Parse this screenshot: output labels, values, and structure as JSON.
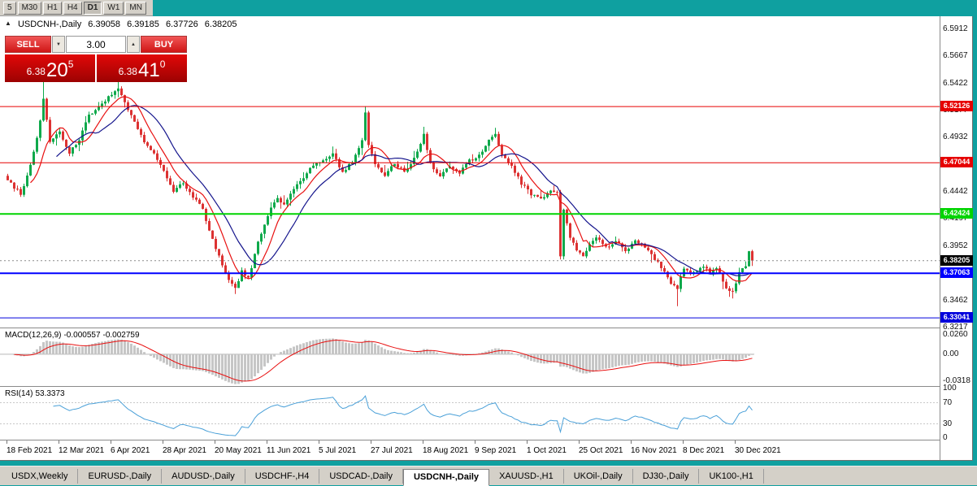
{
  "toolbar": {
    "timeframes": [
      {
        "label": "5",
        "active": false
      },
      {
        "label": "M30",
        "active": false
      },
      {
        "label": "H1",
        "active": false
      },
      {
        "label": "H4",
        "active": false
      },
      {
        "label": "D1",
        "active": true
      },
      {
        "label": "W1",
        "active": false
      },
      {
        "label": "MN",
        "active": false
      }
    ]
  },
  "header": {
    "collapse_icon": "▲",
    "symbol": "USDCNH-,Daily"
  },
  "trade_panel": {
    "sell_label": "SELL",
    "buy_label": "BUY",
    "volume": "3.00",
    "volume_down_icon": "▼",
    "volume_up_icon": "▲",
    "sell_price": {
      "base": "6.38",
      "big": "20",
      "sup": "5"
    },
    "buy_price": {
      "base": "6.38",
      "big": "41",
      "sup": "0"
    }
  },
  "chart_data": {
    "type": "candlestick",
    "title": "USDCNH-,Daily",
    "quote": {
      "open": "6.39058",
      "high": "6.39185",
      "low": "6.37726",
      "close": "6.38205"
    },
    "colors": {
      "up": "#0EA94B",
      "down": "#DC3232",
      "ma_fast": "#E81010",
      "ma_slow": "#14148C",
      "accent_teal": "#0FA0A0"
    },
    "y_axis": {
      "min": 6.3217,
      "max": 6.6028,
      "ticks": [
        "6.5912",
        "6.5667",
        "6.5422",
        "6.5177",
        "6.4932",
        "6.4687",
        "6.4442",
        "6.4197",
        "6.3952",
        "6.3707",
        "6.3462",
        "6.3217"
      ]
    },
    "x_labels": [
      "18 Feb 2021",
      "12 Mar 2021",
      "6 Apr 2021",
      "28 Apr 2021",
      "20 May 2021",
      "11 Jun 2021",
      "5 Jul 2021",
      "27 Jul 2021",
      "18 Aug 2021",
      "9 Sep 2021",
      "1 Oct 2021",
      "25 Oct 2021",
      "16 Nov 2021",
      "8 Dec 2021",
      "30 Dec 2021"
    ],
    "bars_per_label": 16,
    "total_candles": 230,
    "levels": [
      {
        "price": 6.52126,
        "label": "6.52126",
        "color": "#E60000",
        "width": 1
      },
      {
        "price": 6.47044,
        "label": "6.47044",
        "color": "#E60000",
        "width": 1
      },
      {
        "price": 6.42424,
        "label": "6.42424",
        "color": "#00D400",
        "width": 2
      },
      {
        "price": 6.37063,
        "label": "6.37063",
        "color": "#0000FF",
        "width": 2
      },
      {
        "price": 6.33041,
        "label": "6.33041",
        "color": "#0000DC",
        "width": 1
      }
    ],
    "current_price": {
      "price": 6.38205,
      "label": "6.38205",
      "color": "#000000"
    },
    "anchors": [
      [
        0,
        6.455
      ],
      [
        4,
        6.442
      ],
      [
        7,
        6.468
      ],
      [
        9,
        6.492
      ],
      [
        11,
        6.528
      ],
      [
        13,
        6.49
      ],
      [
        16,
        6.498
      ],
      [
        19,
        6.48
      ],
      [
        22,
        6.492
      ],
      [
        25,
        6.513
      ],
      [
        28,
        6.52
      ],
      [
        31,
        6.53
      ],
      [
        34,
        6.538
      ],
      [
        36,
        6.525
      ],
      [
        39,
        6.508
      ],
      [
        42,
        6.49
      ],
      [
        45,
        6.478
      ],
      [
        48,
        6.462
      ],
      [
        51,
        6.445
      ],
      [
        54,
        6.452
      ],
      [
        57,
        6.44
      ],
      [
        60,
        6.428
      ],
      [
        63,
        6.402
      ],
      [
        66,
        6.378
      ],
      [
        68,
        6.364
      ],
      [
        70,
        6.358
      ],
      [
        72,
        6.372
      ],
      [
        74,
        6.366
      ],
      [
        77,
        6.398
      ],
      [
        80,
        6.423
      ],
      [
        83,
        6.44
      ],
      [
        85,
        6.432
      ],
      [
        88,
        6.448
      ],
      [
        91,
        6.458
      ],
      [
        94,
        6.468
      ],
      [
        97,
        6.472
      ],
      [
        100,
        6.478
      ],
      [
        103,
        6.462
      ],
      [
        106,
        6.472
      ],
      [
        109,
        6.49
      ],
      [
        110,
        6.516
      ],
      [
        111,
        6.487
      ],
      [
        113,
        6.468
      ],
      [
        116,
        6.458
      ],
      [
        119,
        6.47
      ],
      [
        122,
        6.462
      ],
      [
        125,
        6.474
      ],
      [
        128,
        6.496
      ],
      [
        130,
        6.47
      ],
      [
        133,
        6.458
      ],
      [
        136,
        6.468
      ],
      [
        139,
        6.462
      ],
      [
        142,
        6.472
      ],
      [
        145,
        6.478
      ],
      [
        148,
        6.49
      ],
      [
        150,
        6.497
      ],
      [
        152,
        6.478
      ],
      [
        155,
        6.468
      ],
      [
        158,
        6.452
      ],
      [
        161,
        6.442
      ],
      [
        164,
        6.438
      ],
      [
        167,
        6.446
      ],
      [
        169,
        6.443
      ],
      [
        170,
        6.385
      ],
      [
        171,
        6.428
      ],
      [
        173,
        6.402
      ],
      [
        175,
        6.392
      ],
      [
        177,
        6.386
      ],
      [
        179,
        6.398
      ],
      [
        181,
        6.404
      ],
      [
        184,
        6.394
      ],
      [
        187,
        6.4
      ],
      [
        190,
        6.391
      ],
      [
        193,
        6.4
      ],
      [
        196,
        6.394
      ],
      [
        199,
        6.384
      ],
      [
        202,
        6.372
      ],
      [
        204,
        6.362
      ],
      [
        206,
        6.358
      ],
      [
        208,
        6.376
      ],
      [
        211,
        6.371
      ],
      [
        214,
        6.377
      ],
      [
        216,
        6.372
      ],
      [
        218,
        6.376
      ],
      [
        221,
        6.358
      ],
      [
        223,
        6.353
      ],
      [
        225,
        6.372
      ],
      [
        227,
        6.377
      ],
      [
        228,
        6.39
      ],
      [
        229,
        6.383
      ]
    ],
    "wick_overrides": [
      {
        "i": 11,
        "high": 6.546
      },
      {
        "i": 34,
        "high": 6.547
      },
      {
        "i": 70,
        "low": 6.352
      },
      {
        "i": 110,
        "high": 6.5215
      },
      {
        "i": 128,
        "high": 6.503
      },
      {
        "i": 150,
        "high": 6.502
      },
      {
        "i": 206,
        "low": 6.341
      },
      {
        "i": 223,
        "low": 6.348
      },
      {
        "i": 229,
        "high": 6.39185,
        "low": 6.37726
      }
    ],
    "indicators": {
      "macd": {
        "name": "MACD(12,26,9)",
        "value_main": "-0.000557",
        "value_signal": "-0.002759",
        "scale_top": "0.0260",
        "scale_zero": "0.00",
        "scale_bottom": "-0.0318",
        "scale_top_val": 0.026,
        "scale_bottom_val": -0.0318,
        "histogram_color": "#C6C6C6",
        "signal_color": "#E81010"
      },
      "rsi": {
        "name": "RSI(14)",
        "value": "53.3373",
        "line_color": "#4AA0D8",
        "scale": [
          {
            "v": 100,
            "label": "100"
          },
          {
            "v": 70,
            "label": "70"
          },
          {
            "v": 30,
            "label": "30"
          },
          {
            "v": 0,
            "label": "0"
          }
        ],
        "guide_levels": [
          70,
          30
        ]
      }
    }
  },
  "tabs": [
    {
      "label": "USDX,Weekly",
      "active": false
    },
    {
      "label": "EURUSD-,Daily",
      "active": false
    },
    {
      "label": "AUDUSD-,Daily",
      "active": false
    },
    {
      "label": "USDCHF-,H4",
      "active": false
    },
    {
      "label": "USDCAD-,Daily",
      "active": false
    },
    {
      "label": "USDCNH-,Daily",
      "active": true
    },
    {
      "label": "XAUUSD-,H1",
      "active": false
    },
    {
      "label": "UKOil-,Daily",
      "active": false
    },
    {
      "label": "DJ30-,Daily",
      "active": false
    },
    {
      "label": "UK100-,H1",
      "active": false
    }
  ]
}
